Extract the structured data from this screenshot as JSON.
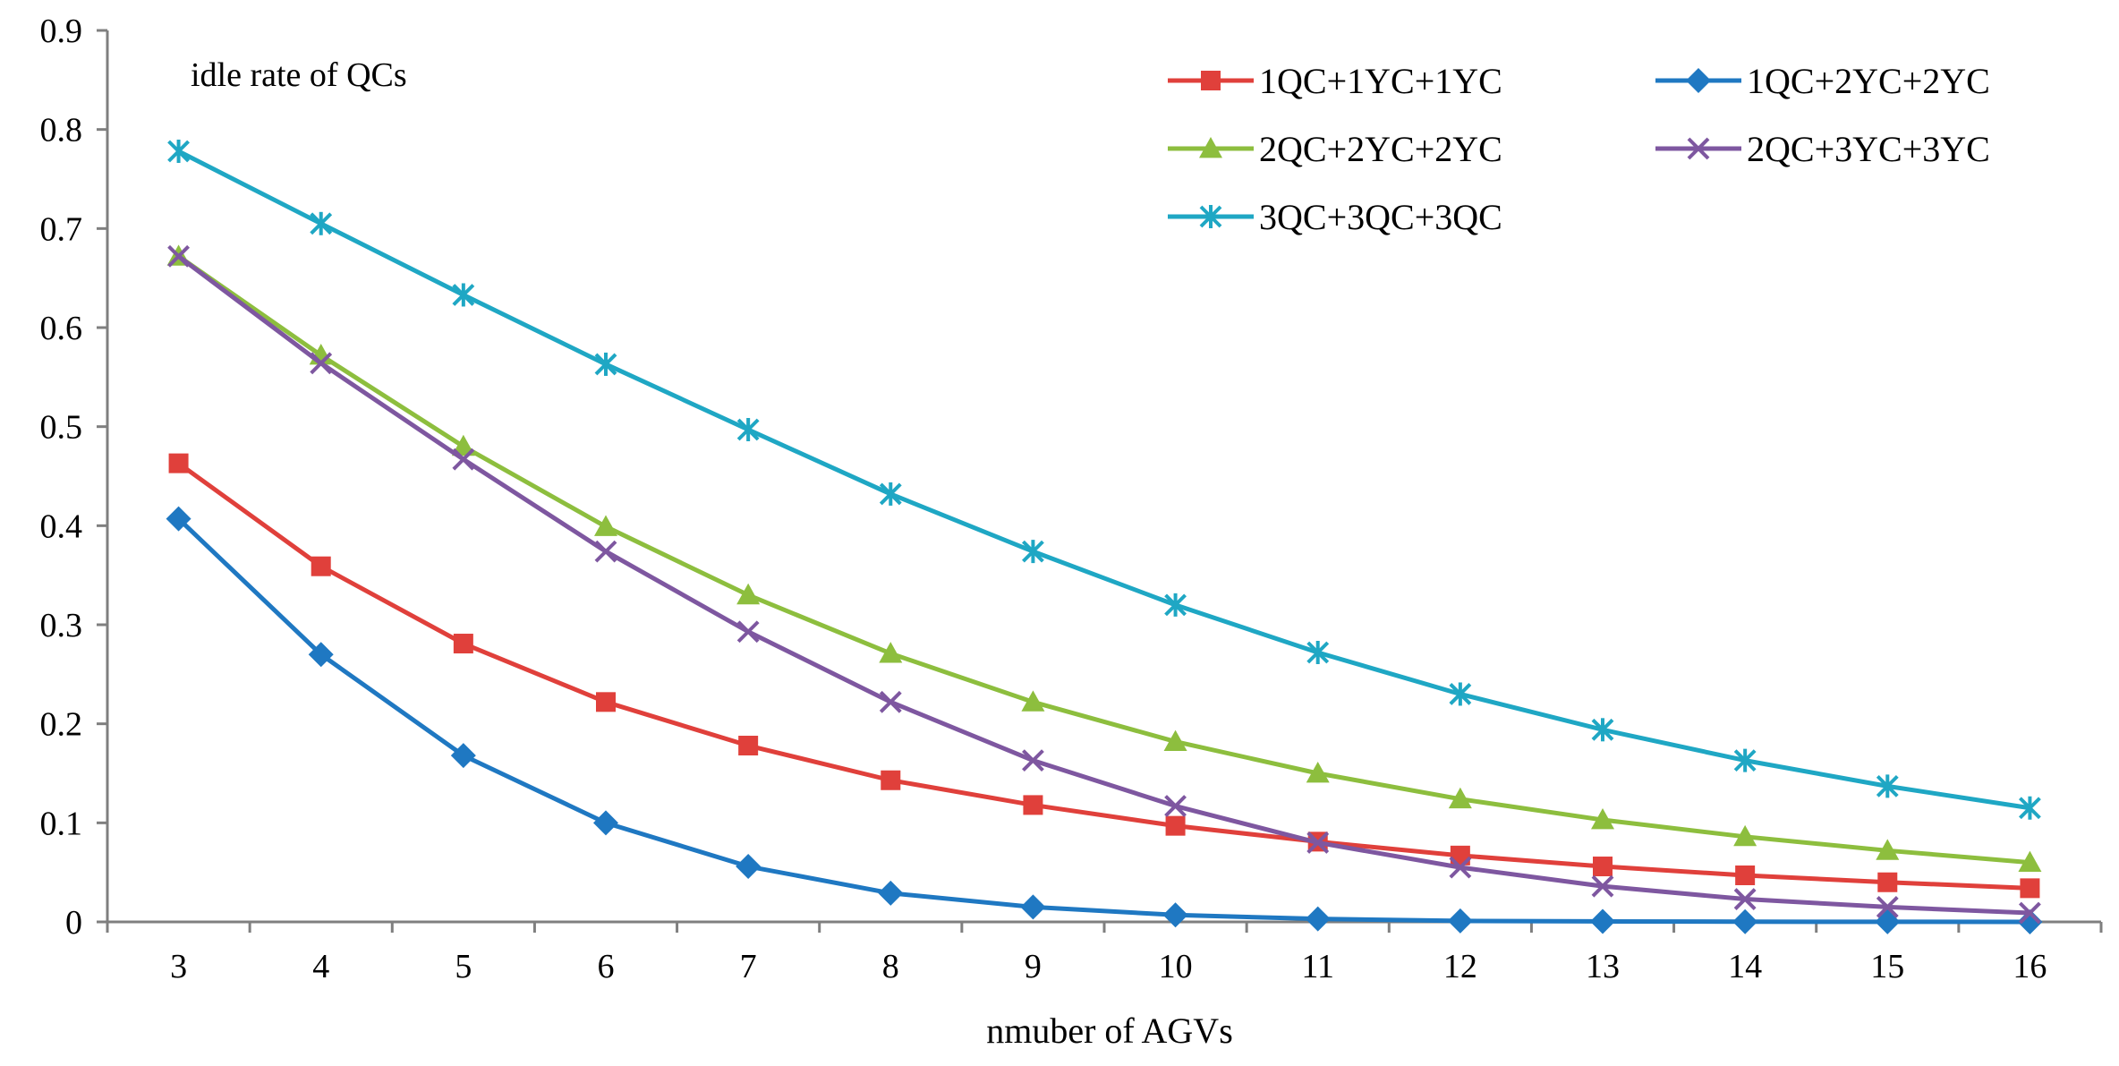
{
  "chart_data": {
    "type": "line",
    "annotation": "idle rate of QCs",
    "xlabel": "nmuber of AGVs",
    "ylabel": "",
    "x": [
      3,
      4,
      5,
      6,
      7,
      8,
      9,
      10,
      11,
      12,
      13,
      14,
      15,
      16
    ],
    "x_tick_labels": [
      "3",
      "4",
      "5",
      "6",
      "7",
      "8",
      "9",
      "10",
      "11",
      "12",
      "13",
      "14",
      "15",
      "16"
    ],
    "ylim": [
      0,
      0.9
    ],
    "y_ticks": [
      0,
      0.1,
      0.2,
      0.3,
      0.4,
      0.5,
      0.6,
      0.7,
      0.8,
      0.9
    ],
    "y_tick_labels": [
      "0",
      "0.1",
      "0.2",
      "0.3",
      "0.4",
      "0.5",
      "0.6",
      "0.7",
      "0.8",
      "0.9"
    ],
    "grid": false,
    "legend_position": "top-right",
    "series": [
      {
        "name": "1QC+1YC+1YC",
        "color": "#E0403B",
        "marker": "square",
        "values": [
          0.463,
          0.359,
          0.281,
          0.222,
          0.178,
          0.143,
          0.118,
          0.097,
          0.081,
          0.067,
          0.056,
          0.047,
          0.04,
          0.034
        ]
      },
      {
        "name": "1QC+2YC+2YC",
        "color": "#1F78C2",
        "marker": "diamond",
        "values": [
          0.407,
          0.27,
          0.168,
          0.1,
          0.056,
          0.029,
          0.015,
          0.007,
          0.003,
          0.001,
          0.0005,
          0.0002,
          0.0001,
          0.0
        ]
      },
      {
        "name": "2QC+2YC+2YC",
        "color": "#8DBE3E",
        "marker": "triangle",
        "values": [
          0.672,
          0.572,
          0.48,
          0.399,
          0.33,
          0.271,
          0.222,
          0.182,
          0.15,
          0.124,
          0.103,
          0.086,
          0.072,
          0.06
        ]
      },
      {
        "name": "2QC+3YC+3YC",
        "color": "#7E57A0",
        "marker": "x",
        "values": [
          0.672,
          0.564,
          0.467,
          0.374,
          0.293,
          0.222,
          0.163,
          0.117,
          0.08,
          0.055,
          0.036,
          0.023,
          0.015,
          0.009
        ]
      },
      {
        "name": "3QC+3QC+3QC",
        "color": "#1FA7C4",
        "marker": "star",
        "values": [
          0.778,
          0.705,
          0.633,
          0.563,
          0.497,
          0.432,
          0.374,
          0.32,
          0.272,
          0.23,
          0.194,
          0.163,
          0.137,
          0.115
        ]
      }
    ]
  }
}
